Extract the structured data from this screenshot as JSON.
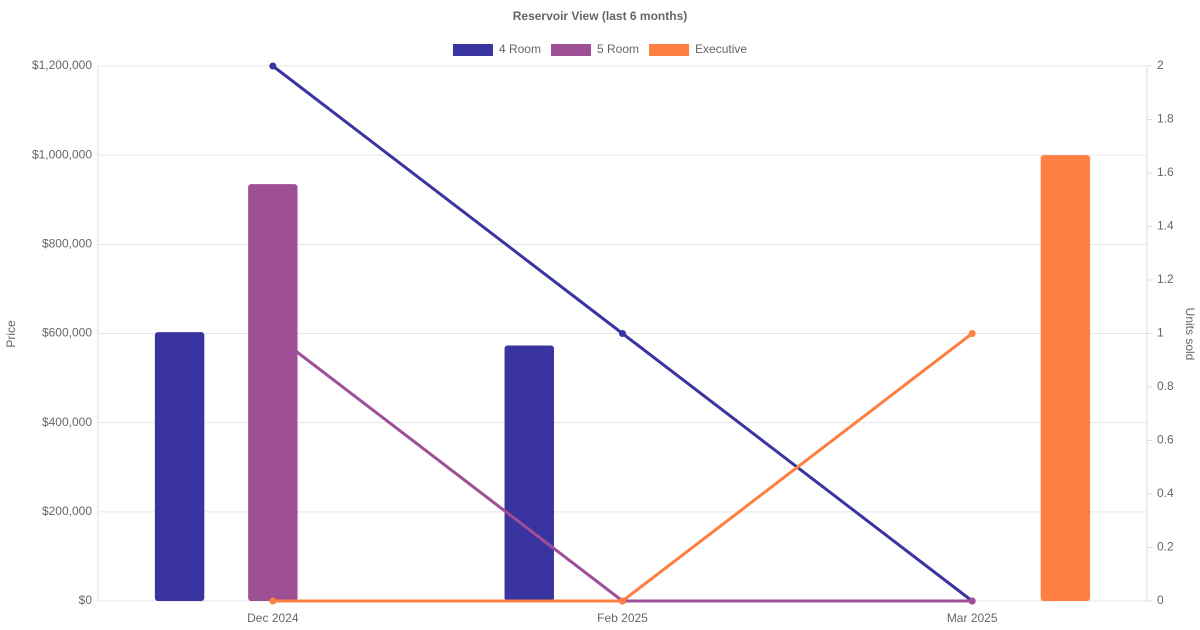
{
  "chart_data": {
    "type": "bar-line",
    "title": "Reservoir View (last 6 months)",
    "categories": [
      "Dec 2024",
      "Feb 2025",
      "Mar 2025"
    ],
    "y_label": "Price",
    "y2_label": "Units sold",
    "ylim": [
      0,
      1200000
    ],
    "yticks": [
      {
        "value": 0,
        "label": "$0"
      },
      {
        "value": 200000,
        "label": "$200,000"
      },
      {
        "value": 400000,
        "label": "$400,000"
      },
      {
        "value": 600000,
        "label": "$600,000"
      },
      {
        "value": 800000,
        "label": "$800,000"
      },
      {
        "value": 1000000,
        "label": "$1,000,000"
      },
      {
        "value": 1200000,
        "label": "$1,200,000"
      }
    ],
    "y2lim": [
      0,
      2
    ],
    "y2ticks": [
      0,
      0.2,
      0.4,
      0.6,
      0.8,
      1,
      1.2,
      1.4,
      1.6,
      1.8,
      2
    ],
    "grid": true,
    "legend": "top",
    "series": [
      {
        "name": "4 Room",
        "color": "#3a34a0",
        "values": [
          603000,
          573000,
          null
        ],
        "units": [
          2,
          1,
          0
        ]
      },
      {
        "name": "5 Room",
        "color": "#9e4f96",
        "values": [
          935000,
          null,
          null
        ],
        "units": [
          1,
          0,
          0
        ]
      },
      {
        "name": "Executive",
        "color": "#ff7f41",
        "values": [
          null,
          null,
          1000000
        ],
        "units": [
          0,
          0,
          1
        ]
      }
    ]
  }
}
